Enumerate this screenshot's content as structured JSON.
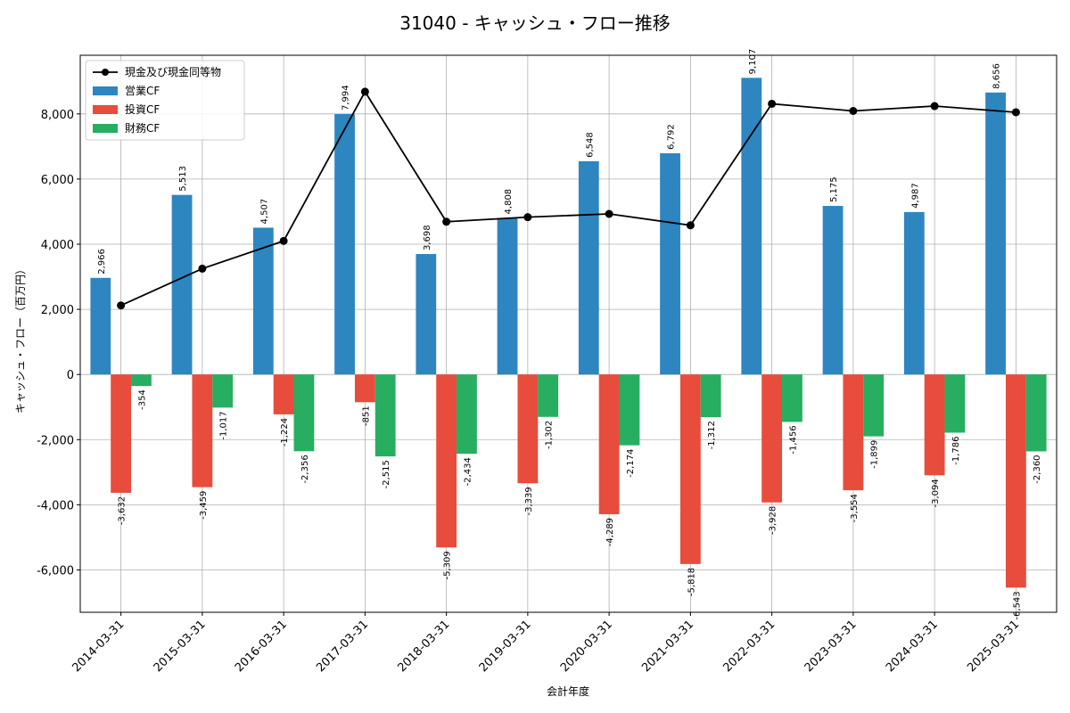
{
  "chart_data": {
    "type": "bar",
    "title": "31040 - キャッシュ・フロー推移",
    "xlabel": "会計年度",
    "ylabel": "キャッシュ・フロー（百万円）",
    "ylim": [
      -7300,
      9800
    ],
    "yticks": [
      -6000,
      -4000,
      -2000,
      0,
      2000,
      4000,
      6000,
      8000
    ],
    "ytick_labels": [
      "-6,000",
      "-4,000",
      "-2,000",
      "0",
      "2,000",
      "4,000",
      "6,000",
      "8,000"
    ],
    "grid": true,
    "legend_position": "top-left",
    "categories": [
      "2014-03-31",
      "2015-03-31",
      "2016-03-31",
      "2017-03-31",
      "2018-03-31",
      "2019-03-31",
      "2020-03-31",
      "2021-03-31",
      "2022-03-31",
      "2023-03-31",
      "2024-03-31",
      "2025-03-31"
    ],
    "series": [
      {
        "name": "営業CF",
        "kind": "bar",
        "color": "#2e86c1",
        "values": [
          2966,
          5513,
          4507,
          7994,
          3698,
          4808,
          6548,
          6792,
          9107,
          5175,
          4987,
          8656
        ],
        "labels": [
          "2,966",
          "5,513",
          "4,507",
          "7,994",
          "3,698",
          "4,808",
          "6,548",
          "6,792",
          "9,107",
          "5,175",
          "4,987",
          "8,656"
        ]
      },
      {
        "name": "投資CF",
        "kind": "bar",
        "color": "#e74c3c",
        "values": [
          -3632,
          -3459,
          -1224,
          -851,
          -5309,
          -3339,
          -4289,
          -5818,
          -3928,
          -3554,
          -3094,
          -6543
        ],
        "labels": [
          "-3,632",
          "-3,459",
          "-1,224",
          "-851",
          "-5,309",
          "-3,339",
          "-4,289",
          "-5,818",
          "-3,928",
          "-3,554",
          "-3,094",
          "-6,543"
        ]
      },
      {
        "name": "財務CF",
        "kind": "bar",
        "color": "#27ae60",
        "values": [
          -354,
          -1017,
          -2356,
          -2515,
          -2434,
          -1302,
          -2174,
          -1312,
          -1456,
          -1899,
          -1786,
          -2360
        ],
        "labels": [
          "-354",
          "-1,017",
          "-2,356",
          "-2,515",
          "-2,434",
          "-1,302",
          "-2,174",
          "-1,312",
          "-1,456",
          "-1,899",
          "-1,786",
          "-2,360"
        ]
      },
      {
        "name": "現金及び現金同等物",
        "kind": "line",
        "color": "#000000",
        "values": [
          2120,
          3250,
          4100,
          8680,
          4690,
          4830,
          4930,
          4580,
          8310,
          8090,
          8240,
          8050
        ]
      }
    ]
  }
}
